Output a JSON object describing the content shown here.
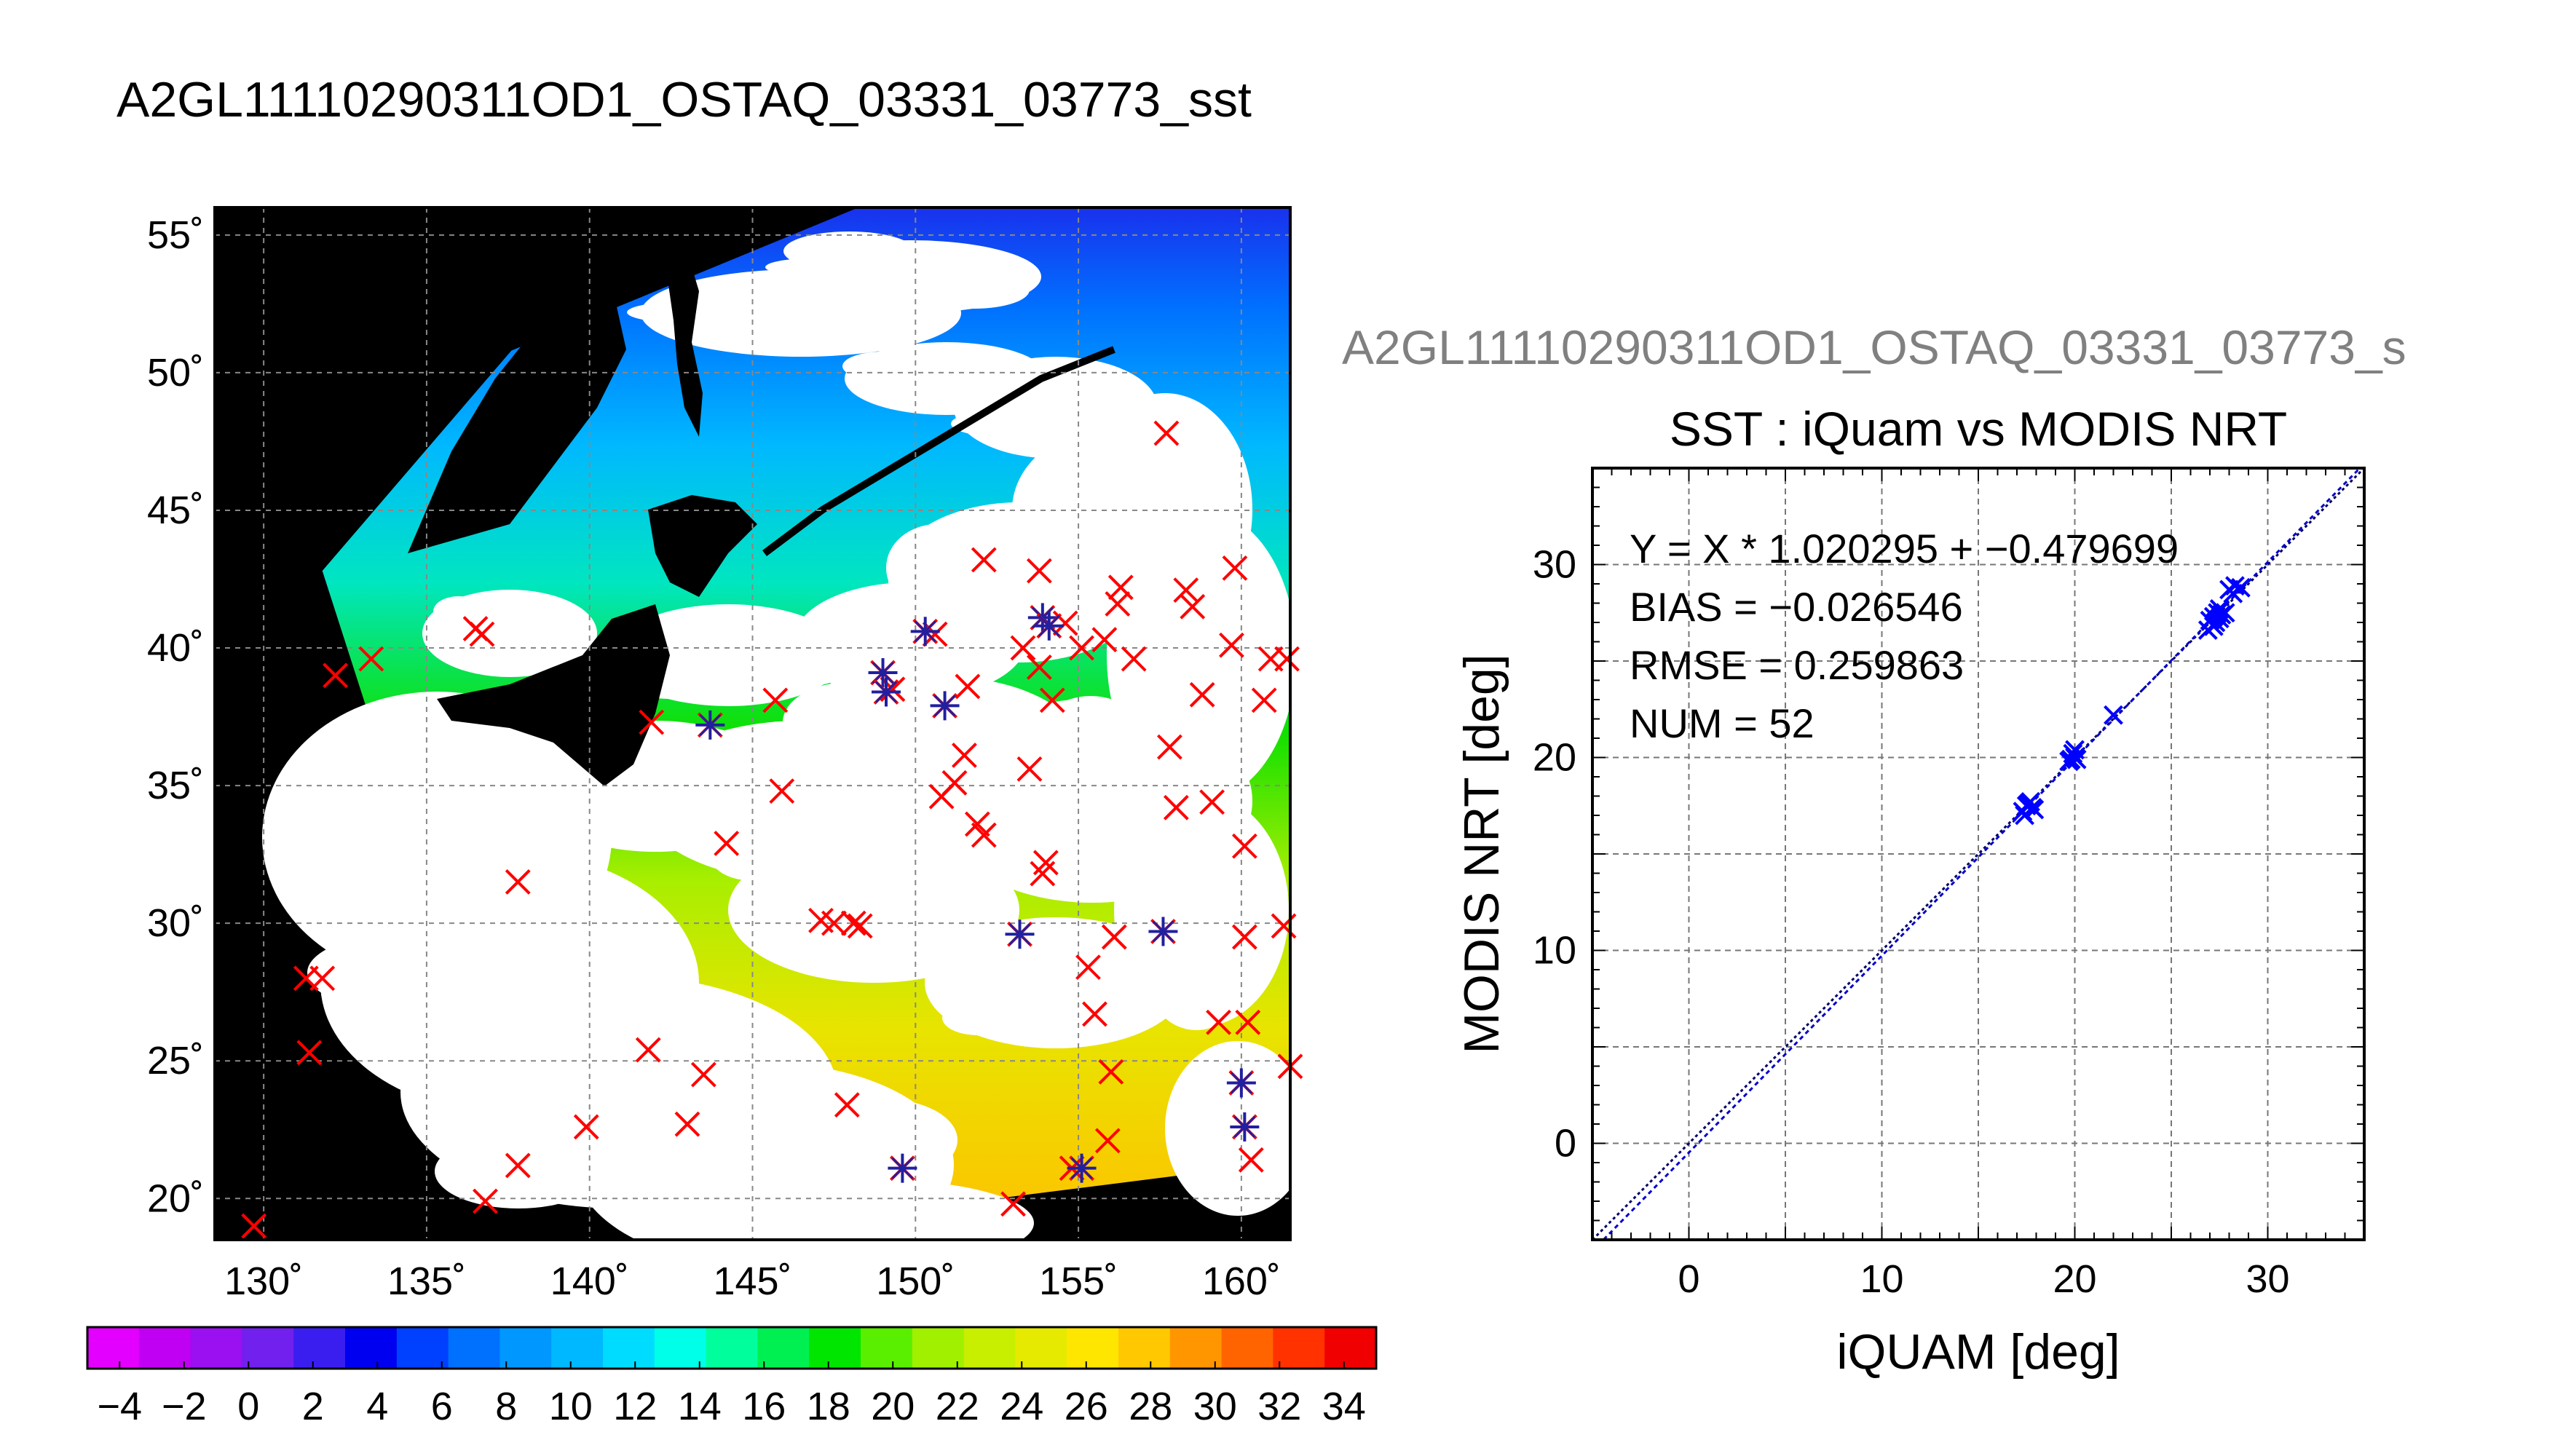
{
  "page_title": "A2GL11110290311OD1_OSTAQ_03331_03773_sst",
  "chart_data": [
    {
      "type": "map",
      "title": "",
      "xlim": [
        128.5,
        161.5
      ],
      "ylim": [
        18.5,
        56.0
      ],
      "lon_ticks": [
        130,
        135,
        140,
        145,
        150,
        155,
        160
      ],
      "lat_ticks": [
        20,
        25,
        30,
        35,
        40,
        45,
        50,
        55
      ],
      "lon_tick_labels": [
        "130˚",
        "135˚",
        "140˚",
        "145˚",
        "150˚",
        "155˚",
        "160˚"
      ],
      "lat_tick_labels": [
        "20˚",
        "25˚",
        "30˚",
        "35˚",
        "40˚",
        "45˚",
        "50˚",
        "55˚"
      ],
      "grid": true,
      "swath_corners": [
        [
          137.6,
          50.8
        ],
        [
          150.3,
          57.0
        ],
        [
          163.0,
          56.0
        ],
        [
          162.5,
          21.5
        ],
        [
          142.5,
          18.5
        ],
        [
          134.6,
          32.5
        ],
        [
          131.8,
          42.8
        ]
      ],
      "matchups_red": [
        [
          129.7,
          19.0
        ],
        [
          131.3,
          28.0
        ],
        [
          131.8,
          28.0
        ],
        [
          131.4,
          25.3
        ],
        [
          132.2,
          39.0
        ],
        [
          133.3,
          39.6
        ],
        [
          136.5,
          40.7
        ],
        [
          136.7,
          40.5
        ],
        [
          137.8,
          31.5
        ],
        [
          137.8,
          21.2
        ],
        [
          136.8,
          19.9
        ],
        [
          139.9,
          22.6
        ],
        [
          141.8,
          25.4
        ],
        [
          143.0,
          22.7
        ],
        [
          143.5,
          24.5
        ],
        [
          141.9,
          37.3
        ],
        [
          144.2,
          32.9
        ],
        [
          145.9,
          34.8
        ],
        [
          145.7,
          38.1
        ],
        [
          147.1,
          30.1
        ],
        [
          147.5,
          30.0
        ],
        [
          148.1,
          30.0
        ],
        [
          147.9,
          23.4
        ],
        [
          148.3,
          29.9
        ],
        [
          149.3,
          38.5
        ],
        [
          150.6,
          40.5
        ],
        [
          150.8,
          34.6
        ],
        [
          151.2,
          35.1
        ],
        [
          151.5,
          36.1
        ],
        [
          151.6,
          38.6
        ],
        [
          151.9,
          33.6
        ],
        [
          152.1,
          33.2
        ],
        [
          152.1,
          43.2
        ],
        [
          153.0,
          19.8
        ],
        [
          153.3,
          40.0
        ],
        [
          153.5,
          35.6
        ],
        [
          153.8,
          39.3
        ],
        [
          153.8,
          42.8
        ],
        [
          153.9,
          31.8
        ],
        [
          154.0,
          32.2
        ],
        [
          154.2,
          38.1
        ],
        [
          154.6,
          40.9
        ],
        [
          154.8,
          21.1
        ],
        [
          155.1,
          40.0
        ],
        [
          155.3,
          28.4
        ],
        [
          155.5,
          26.7
        ],
        [
          155.8,
          40.3
        ],
        [
          155.9,
          22.1
        ],
        [
          156.0,
          24.6
        ],
        [
          156.1,
          29.5
        ],
        [
          156.2,
          41.6
        ],
        [
          156.3,
          42.2
        ],
        [
          156.7,
          39.6
        ],
        [
          157.7,
          47.8
        ],
        [
          157.8,
          36.4
        ],
        [
          158.0,
          34.2
        ],
        [
          158.3,
          42.1
        ],
        [
          158.5,
          41.5
        ],
        [
          158.8,
          38.3
        ],
        [
          159.1,
          34.4
        ],
        [
          159.3,
          26.4
        ],
        [
          159.7,
          40.1
        ],
        [
          159.8,
          42.9
        ],
        [
          160.2,
          26.4
        ],
        [
          160.1,
          32.8
        ],
        [
          160.1,
          29.5
        ],
        [
          160.3,
          21.4
        ],
        [
          160.7,
          38.1
        ],
        [
          160.9,
          39.6
        ],
        [
          161.3,
          29.9
        ],
        [
          161.4,
          39.6
        ],
        [
          161.5,
          24.8
        ]
      ],
      "matchups_blue": [
        [
          143.7,
          37.2
        ],
        [
          149.0,
          39.1
        ],
        [
          149.1,
          38.4
        ],
        [
          150.3,
          40.6
        ],
        [
          150.9,
          37.9
        ],
        [
          153.2,
          29.6
        ],
        [
          153.9,
          41.1
        ],
        [
          154.1,
          40.8
        ],
        [
          149.6,
          21.1
        ],
        [
          155.1,
          21.1
        ],
        [
          157.6,
          29.7
        ],
        [
          160.0,
          24.2
        ],
        [
          160.1,
          22.6
        ]
      ]
    },
    {
      "type": "colorbar",
      "min": -5,
      "max": 35,
      "ticks": [
        -4,
        -2,
        0,
        2,
        4,
        6,
        8,
        10,
        12,
        14,
        16,
        18,
        20,
        22,
        24,
        26,
        28,
        30,
        32,
        34
      ],
      "tick_labels": [
        "−4",
        "−2",
        "0",
        "2",
        "4",
        "6",
        "8",
        "10",
        "12",
        "14",
        "16",
        "18",
        "20",
        "22",
        "24",
        "26",
        "28",
        "30",
        "32",
        "34"
      ],
      "colors": [
        "#e400ff",
        "#c000f2",
        "#9a10f0",
        "#7120ee",
        "#3a1ef0",
        "#0000f0",
        "#0040ff",
        "#0070ff",
        "#0098ff",
        "#00b8ff",
        "#00dcff",
        "#00ffe8",
        "#00ff9c",
        "#00f052",
        "#00e600",
        "#5aef00",
        "#a0f000",
        "#c8ee00",
        "#e6ea00",
        "#ffe600",
        "#ffc800",
        "#ff9600",
        "#ff6400",
        "#ff3200",
        "#f00000"
      ]
    },
    {
      "type": "scatter",
      "window_title": "A2GL11110290311OD1_OSTAQ_03331_03773_s",
      "title": "SST : iQuam vs MODIS NRT",
      "xlabel": "iQUAM [deg]",
      "ylabel": "MODIS NRT [deg]",
      "xlim": [
        -5,
        35
      ],
      "ylim": [
        -5,
        35
      ],
      "xticks": [
        0,
        10,
        20,
        30
      ],
      "yticks": [
        0,
        10,
        20,
        30
      ],
      "grid": true,
      "stats": [
        "Y = X * 1.020295 + −0.479699",
        "BIAS = −0.026546",
        "RMSE = 0.259863",
        "NUM = 52"
      ],
      "fit": {
        "slope": 1.020295,
        "intercept": -0.479699
      },
      "points": [
        [
          17.3,
          17.2
        ],
        [
          17.5,
          17.5
        ],
        [
          17.8,
          17.4
        ],
        [
          17.6,
          17.6
        ],
        [
          17.9,
          17.3
        ],
        [
          17.4,
          17.0
        ],
        [
          17.7,
          17.7
        ],
        [
          19.8,
          19.9
        ],
        [
          19.9,
          20.2
        ],
        [
          20.0,
          20.0
        ],
        [
          19.7,
          19.8
        ],
        [
          20.1,
          19.9
        ],
        [
          20.0,
          20.4
        ],
        [
          22.0,
          22.2
        ],
        [
          26.9,
          26.6
        ],
        [
          27.0,
          27.1
        ],
        [
          27.2,
          27.3
        ],
        [
          27.3,
          27.0
        ],
        [
          27.4,
          27.5
        ],
        [
          27.5,
          27.2
        ],
        [
          27.6,
          27.4
        ],
        [
          27.2,
          26.8
        ],
        [
          27.5,
          27.7
        ],
        [
          27.8,
          27.5
        ],
        [
          28.0,
          28.7
        ],
        [
          28.3,
          28.9
        ],
        [
          28.6,
          28.8
        ],
        [
          28.2,
          28.5
        ]
      ]
    }
  ]
}
